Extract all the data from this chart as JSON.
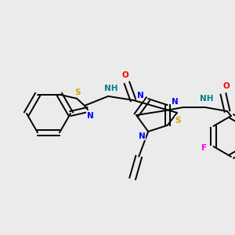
{
  "bg_color": "#ebebeb",
  "bond_color": "#000000",
  "atom_colors": {
    "N": "#0000ff",
    "S": "#ccaa00",
    "O": "#ff0000",
    "F": "#ff00ee",
    "NH": "#008080",
    "C": "#000000"
  }
}
